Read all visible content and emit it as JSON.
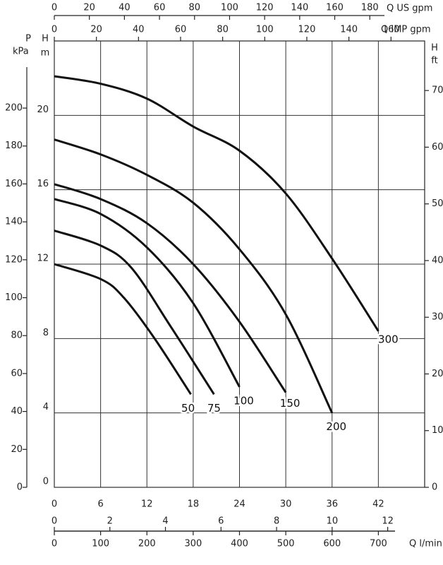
{
  "chart_data": {
    "type": "line",
    "xlim": [
      0,
      48
    ],
    "xticks": [
      0,
      6,
      12,
      18,
      24,
      30,
      36,
      42
    ],
    "ylim": [
      0,
      24
    ],
    "yticks": [
      0,
      4,
      8,
      12,
      16,
      20
    ],
    "y_label": [
      "H",
      "m"
    ],
    "grid": true,
    "color": "#111111",
    "x_axes": [
      {
        "label": "Q US gpm",
        "lim": [
          0,
          211.3
        ],
        "ticks": [
          0,
          20,
          40,
          60,
          80,
          100,
          120,
          140,
          160,
          180
        ]
      },
      {
        "label": "Q IMP gpm",
        "lim": [
          0,
          176
        ],
        "ticks": [
          0,
          20,
          40,
          60,
          80,
          100,
          120,
          140,
          160
        ]
      },
      {
        "lim": [
          0,
          13.33
        ],
        "ticks": [
          0,
          2,
          4,
          6,
          8,
          10,
          12
        ]
      },
      {
        "label": "Q l/min",
        "lim": [
          0,
          800
        ],
        "ticks": [
          0,
          100,
          200,
          300,
          400,
          500,
          600,
          700
        ]
      }
    ],
    "y_axes": [
      {
        "label": [
          "P",
          "kPa"
        ],
        "lim": [
          0,
          235.4
        ],
        "ticks": [
          0,
          20,
          40,
          60,
          80,
          100,
          120,
          140,
          160,
          180,
          200
        ]
      },
      {
        "label": [
          "H",
          "ft"
        ],
        "lim": [
          0,
          78.74
        ],
        "ticks": [
          0,
          10,
          20,
          30,
          40,
          50,
          60,
          70
        ]
      }
    ],
    "series": [
      {
        "name": "50",
        "x": [
          0,
          6,
          9,
          13,
          17.7
        ],
        "values": [
          12.0,
          11.2,
          10.2,
          8.0,
          5.0
        ]
      },
      {
        "name": "75",
        "x": [
          0,
          6,
          10,
          15,
          20.7
        ],
        "values": [
          13.8,
          13.0,
          11.8,
          8.7,
          5.0
        ]
      },
      {
        "name": "100",
        "x": [
          0,
          6,
          12,
          18,
          24
        ],
        "values": [
          15.5,
          14.7,
          12.9,
          9.9,
          5.4
        ]
      },
      {
        "name": "150",
        "x": [
          0,
          6,
          12,
          18,
          24,
          30
        ],
        "values": [
          16.3,
          15.5,
          14.2,
          12.0,
          8.9,
          5.1
        ]
      },
      {
        "name": "200",
        "x": [
          0,
          6,
          12,
          18,
          24,
          30,
          36
        ],
        "values": [
          18.7,
          17.9,
          16.8,
          15.3,
          12.8,
          9.3,
          4.0
        ]
      },
      {
        "name": "300",
        "x": [
          0,
          6,
          12,
          18,
          24,
          30,
          36,
          42
        ],
        "values": [
          22.1,
          21.7,
          20.9,
          19.4,
          18.1,
          15.8,
          12.3,
          8.4
        ]
      }
    ]
  }
}
